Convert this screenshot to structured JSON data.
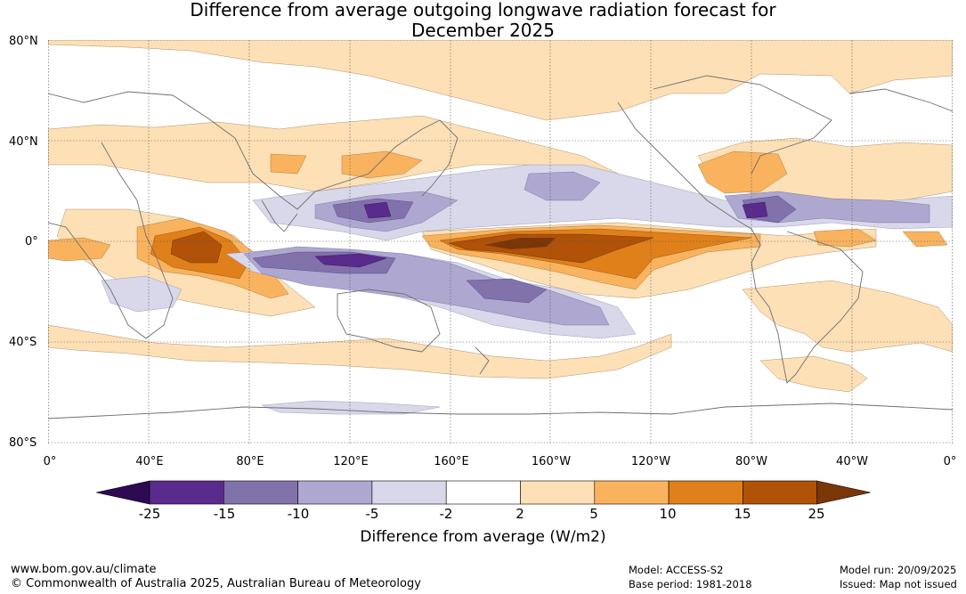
{
  "title": {
    "line1": "Difference from average outgoing longwave radiation forecast for",
    "line2": "December 2025"
  },
  "map": {
    "lat_labels": [
      "80°N",
      "40°N",
      "0°",
      "40°S",
      "80°S"
    ],
    "lon_labels": [
      "0°",
      "40°E",
      "80°E",
      "120°E",
      "160°E",
      "160°W",
      "120°W",
      "80°W",
      "40°W",
      "0°"
    ]
  },
  "colorbar": {
    "ticks": [
      "-25",
      "-15",
      "-10",
      "-5",
      "-2",
      "2",
      "5",
      "10",
      "15",
      "25"
    ],
    "colors": [
      "#2d0a52",
      "#5a2a8c",
      "#8272ac",
      "#aea8d0",
      "#d8d8ea",
      "#ffffff",
      "#fde0b6",
      "#f9b35f",
      "#e0801b",
      "#b05208",
      "#7a3606"
    ],
    "label": "Difference from average (W/m2)"
  },
  "footer": {
    "website": "www.bom.gov.au/climate",
    "copyright": "© Commonwealth of Australia 2025, Australian Bureau of Meteorology",
    "model": "Model: ACCESS-S2",
    "base_period": "Base period: 1981-2018",
    "model_run": "Model run: 20/09/2025",
    "issued": "Issued: Map not issued"
  }
}
